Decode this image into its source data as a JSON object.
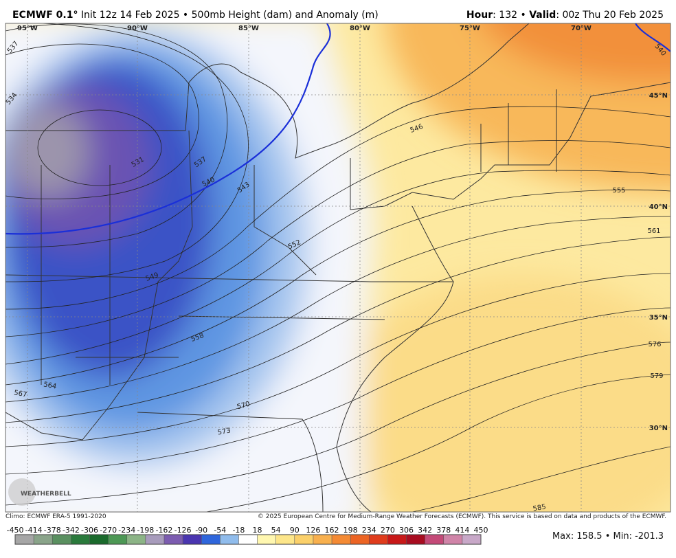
{
  "header": {
    "model": "ECMWF 0.1°",
    "subtitle": "Init 12z 14 Feb 2025 • 500mb Height (dam) and Anomaly (m)",
    "right": [
      {
        "text": "Hour",
        "bold": true
      },
      {
        "text": ": 132 • "
      },
      {
        "text": "Valid",
        "bold": true
      },
      {
        "text": ": 00z Thu 20 Feb 2025"
      }
    ]
  },
  "map": {
    "longitudes": [
      "95°W",
      "90°W",
      "85°W",
      "80°W",
      "75°W",
      "70°W"
    ],
    "latitudes": [
      "45°N",
      "40°N",
      "35°N",
      "30°N"
    ],
    "contour_labels": [
      "537",
      "534",
      "531",
      "537",
      "540",
      "543",
      "546",
      "549",
      "552",
      "555",
      "558",
      "561",
      "564",
      "567",
      "570",
      "573",
      "576",
      "579",
      "585",
      "540"
    ],
    "logo": "WEATHERBELL"
  },
  "footer": {
    "climo": "Climo: ECMWF ERA-5 1991-2020",
    "copyright": "© 2025 European Centre for Medium-Range Weather Forecasts (ECMWF). This service is based on data and products of the ECMWF.",
    "stats": "Max: 158.5 • Min: -201.3"
  },
  "colorbar": {
    "ticks": [
      -450,
      -414,
      -378,
      -342,
      -306,
      -270,
      -234,
      -198,
      -162,
      -126,
      -90,
      -54,
      -18,
      18,
      54,
      90,
      126,
      162,
      198,
      234,
      270,
      306,
      342,
      378,
      414,
      450
    ],
    "colors": [
      "#a6a6a6",
      "#8aa48a",
      "#5a9060",
      "#2a7a3c",
      "#1a6a2c",
      "#4d9855",
      "#8cb486",
      "#a89cbc",
      "#7c5cb0",
      "#4a35b0",
      "#2f66dc",
      "#90bcec",
      "#ffffff",
      "#fff7b0",
      "#fde68a",
      "#fbd06a",
      "#f8b04e",
      "#f48a34",
      "#ec6424",
      "#e03c1c",
      "#c81818",
      "#a80c20",
      "#c44a78",
      "#d084a8",
      "#c8a8c8"
    ]
  }
}
